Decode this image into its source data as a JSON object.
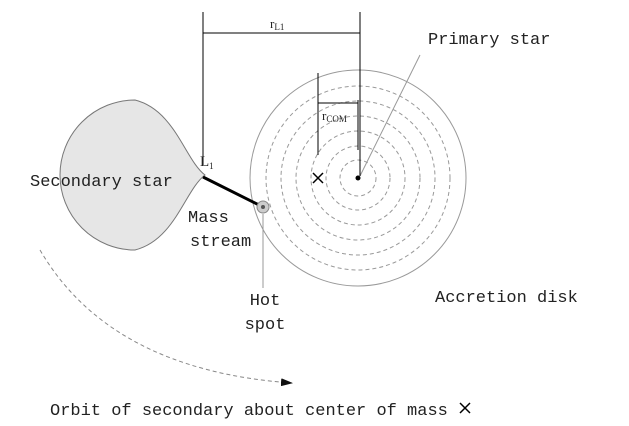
{
  "labels": {
    "r_l1": {
      "main": "r",
      "sub": "L1"
    },
    "primary": "Primary star",
    "r_com": {
      "main": "r",
      "sub": "COM"
    },
    "l1": {
      "main": "L",
      "sub": "1"
    },
    "secondary": "Secondary star",
    "mass_stream": [
      "Mass",
      "stream"
    ],
    "hot_spot": [
      "Hot",
      "spot"
    ],
    "disk": "Accretion disk",
    "orbit": "Orbit of secondary about center of mass"
  }
}
